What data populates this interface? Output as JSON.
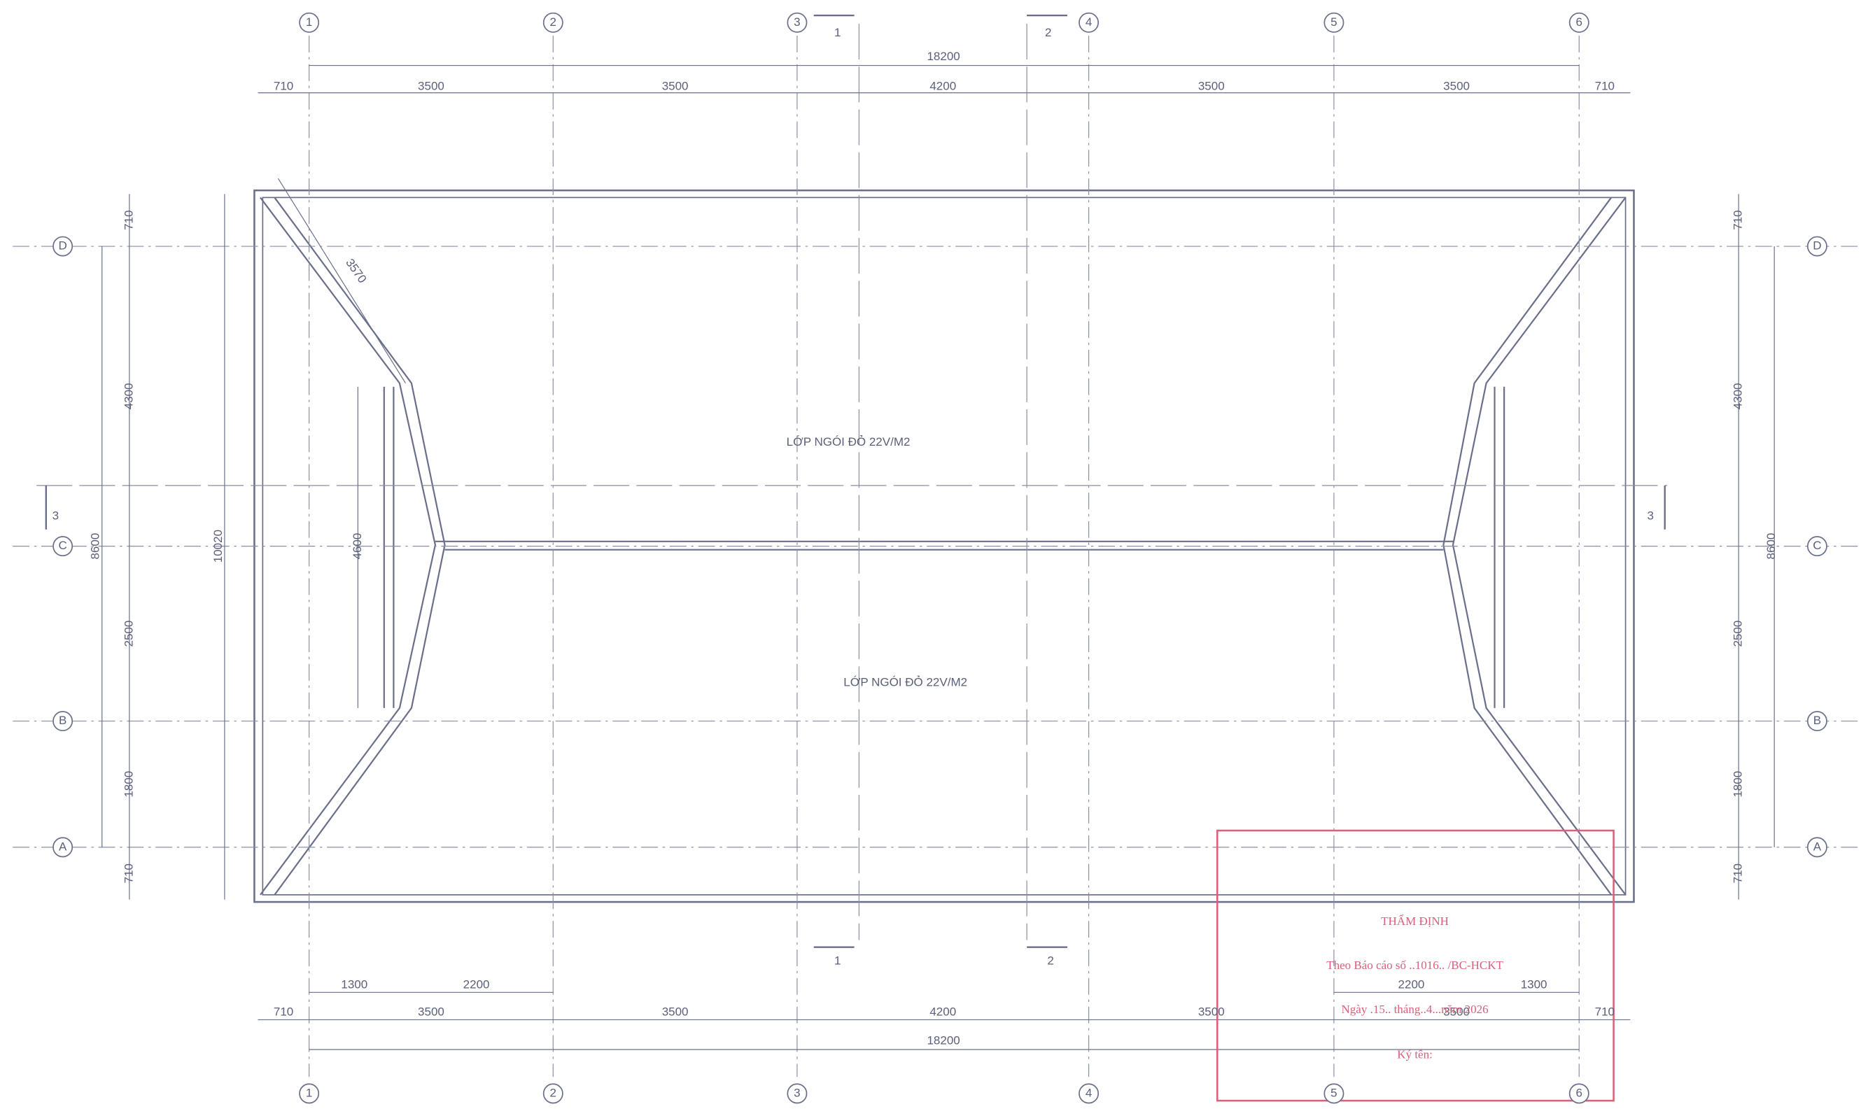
{
  "grid": {
    "columns": [
      "1",
      "2",
      "3",
      "4",
      "5",
      "6"
    ],
    "rows": [
      "D",
      "C",
      "B",
      "A"
    ]
  },
  "section_marks": [
    "1",
    "2",
    "3"
  ],
  "dimensions": {
    "top": {
      "overall": "18200",
      "segments": [
        "710",
        "3500",
        "3500",
        "4200",
        "3500",
        "3500",
        "710"
      ]
    },
    "bottom": {
      "overall": "18200",
      "segments": [
        "710",
        "3500",
        "3500",
        "4200",
        "3500",
        "3500",
        "710"
      ],
      "extra": [
        "1300",
        "2200",
        "2200",
        "1300"
      ]
    },
    "left": {
      "segments": [
        "710",
        "4300",
        "2500",
        "1800",
        "710"
      ],
      "total": "8600",
      "overall": "10020",
      "inner": "4600",
      "diagonal": "3570"
    },
    "right": {
      "segments": [
        "710",
        "4300",
        "2500",
        "1800",
        "710"
      ],
      "total": "8600"
    }
  },
  "roof_labels": [
    "LỚP NGÓI ĐỎ 22V/M2",
    "LỚP NGÓI ĐỎ 22V/M2"
  ],
  "stamp": {
    "title": "THẨM ĐỊNH",
    "line1": "Theo Báo cáo số ..1016.. /BC-HCKT",
    "line2": "Ngày .15.. tháng..4...năm 2026",
    "line3": "Ký tên:"
  }
}
